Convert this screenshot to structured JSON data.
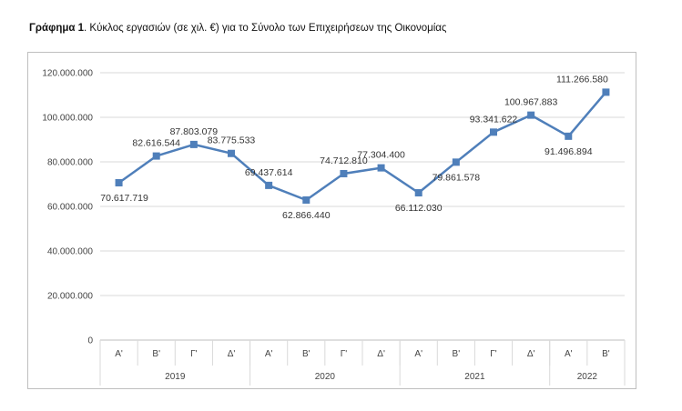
{
  "caption": {
    "bold": "Γράφημα 1",
    "rest": ". Κύκλος εργασιών (σε χιλ. €) για το Σύνολο των Επιχειρήσεων της Οικονομίας"
  },
  "chart_data": {
    "type": "line",
    "title": "",
    "xlabel": "",
    "ylabel": "",
    "ylim": [
      0,
      120000000
    ],
    "yticks": [
      0,
      20000000,
      40000000,
      60000000,
      80000000,
      100000000,
      120000000
    ],
    "ytick_labels": [
      "0",
      "20.000.000",
      "40.000.000",
      "60.000.000",
      "80.000.000",
      "100.000.000",
      "120.000.000"
    ],
    "grid": "horizontal",
    "categories": [
      "Α'",
      "Β'",
      "Γ'",
      "Δ'",
      "Α'",
      "Β'",
      "Γ'",
      "Δ'",
      "Α'",
      "Β'",
      "Γ'",
      "Δ'",
      "Α'",
      "Β'"
    ],
    "groups": [
      {
        "label": "2019",
        "count": 4
      },
      {
        "label": "2020",
        "count": 4
      },
      {
        "label": "2021",
        "count": 4
      },
      {
        "label": "2022",
        "count": 2
      }
    ],
    "series": [
      {
        "color": "#4f7fba",
        "marker": "square",
        "values": [
          70617719,
          82616544,
          87803079,
          83775533,
          69437614,
          62866440,
          74712810,
          77304400,
          66112030,
          79861578,
          93341622,
          100967883,
          91496894,
          111266580
        ],
        "labels": [
          "70.617.719",
          "82.616.544",
          "87.803.079",
          "83.775.533",
          "69.437.614",
          "62.866.440",
          "74.712.810",
          "77.304.400",
          "66.112.030",
          "79.861.578",
          "93.341.622",
          "100.967.883",
          "91.496.894",
          "111.266.580"
        ]
      }
    ]
  }
}
